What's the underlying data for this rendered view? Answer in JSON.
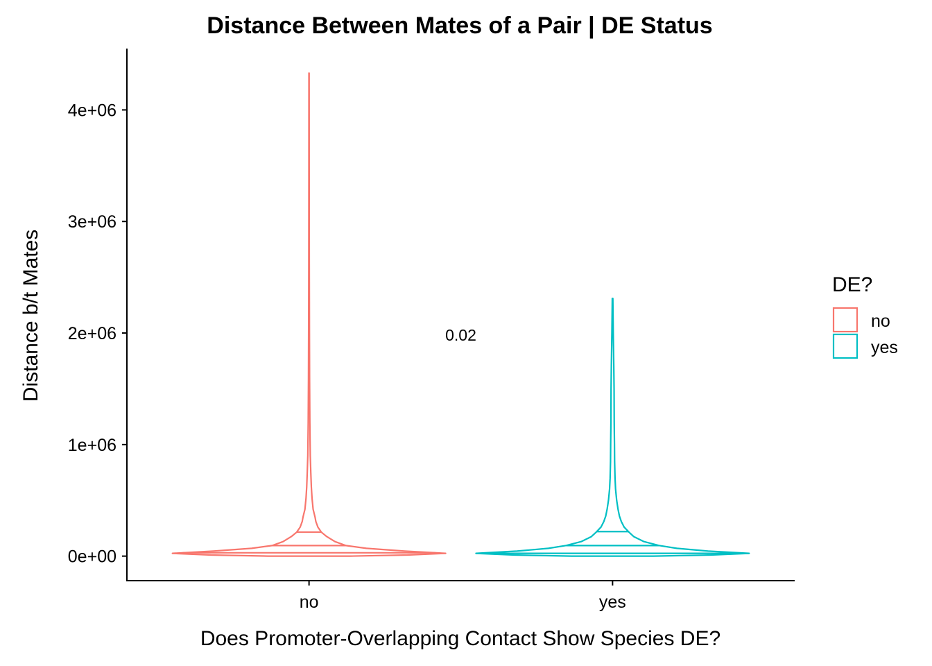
{
  "chart_data": {
    "type": "violin",
    "title": "Distance Between Mates of a Pair | DE Status",
    "xlabel": "Does Promoter-Overlapping Contact Show Species DE?",
    "ylabel": "Distance b/t Mates",
    "categories": [
      "no",
      "yes"
    ],
    "ylim": [
      -220000,
      4550000
    ],
    "yticks": [
      0,
      1000000,
      2000000,
      3000000,
      4000000
    ],
    "ytick_labels": [
      "0e+00",
      "1e+06",
      "2e+06",
      "3e+06",
      "4e+06"
    ],
    "grid": false,
    "legend": {
      "title": "DE?",
      "position": "right",
      "entries": [
        {
          "label": "no",
          "color": "#F8766D"
        },
        {
          "label": "yes",
          "color": "#00BFC4"
        }
      ]
    },
    "annotation": {
      "text": "0.02",
      "x": 1.5,
      "y": 1980000
    },
    "series": [
      {
        "name": "no",
        "color": "#F8766D",
        "max": 4330000,
        "quantiles": [
          30000,
          95000,
          215000
        ],
        "profile": [
          [
            0,
            0.3
          ],
          [
            10000,
            0.72
          ],
          [
            25000,
            1.0
          ],
          [
            45000,
            0.7
          ],
          [
            70000,
            0.42
          ],
          [
            95000,
            0.27
          ],
          [
            130000,
            0.19
          ],
          [
            175000,
            0.13
          ],
          [
            215000,
            0.09
          ],
          [
            260000,
            0.065
          ],
          [
            310000,
            0.05
          ],
          [
            350000,
            0.044
          ],
          [
            420000,
            0.03
          ],
          [
            520000,
            0.022
          ],
          [
            620000,
            0.017
          ],
          [
            750000,
            0.013
          ],
          [
            900000,
            0.009
          ],
          [
            1200000,
            0.006
          ],
          [
            1600000,
            0.004
          ],
          [
            2000000,
            0.003
          ],
          [
            2600000,
            0.002
          ],
          [
            3500000,
            0.0012
          ],
          [
            4330000,
            0.0008
          ]
        ]
      },
      {
        "name": "yes",
        "color": "#00BFC4",
        "max": 2310000,
        "quantiles": [
          25000,
          95000,
          220000
        ],
        "profile": [
          [
            0,
            0.3
          ],
          [
            10000,
            0.72
          ],
          [
            25000,
            1.0
          ],
          [
            45000,
            0.7
          ],
          [
            70000,
            0.47
          ],
          [
            95000,
            0.34
          ],
          [
            130000,
            0.23
          ],
          [
            175000,
            0.155
          ],
          [
            215000,
            0.12
          ],
          [
            260000,
            0.085
          ],
          [
            310000,
            0.064
          ],
          [
            360000,
            0.05
          ],
          [
            420000,
            0.04
          ],
          [
            500000,
            0.03
          ],
          [
            600000,
            0.022
          ],
          [
            700000,
            0.018
          ],
          [
            850000,
            0.015
          ],
          [
            1000000,
            0.014
          ],
          [
            1200000,
            0.012
          ],
          [
            1500000,
            0.011
          ],
          [
            1700000,
            0.009
          ],
          [
            2000000,
            0.005
          ],
          [
            2310000,
            0.002
          ]
        ]
      }
    ]
  }
}
